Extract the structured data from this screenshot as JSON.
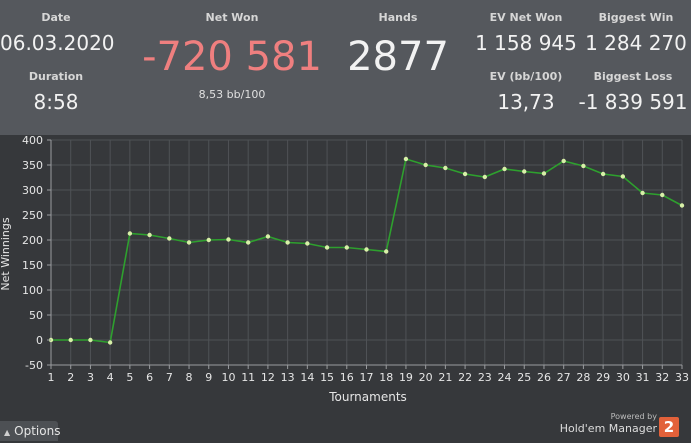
{
  "stats": {
    "date_label": "Date",
    "date_value": "06.03.2020",
    "duration_label": "Duration",
    "duration_value": "8:58",
    "net_won_label": "Net Won",
    "net_won_value": "-720 581",
    "bb100_value": "8,53 bb/100",
    "hands_label": "Hands",
    "hands_value": "2877",
    "ev_net_won_label": "EV Net Won",
    "ev_net_won_value": "1 158 945",
    "ev_bb100_label": "EV (bb/100)",
    "ev_bb100_value": "13,73",
    "biggest_win_label": "Biggest Win",
    "biggest_win_value": "1 284 270",
    "biggest_loss_label": "Biggest Loss",
    "biggest_loss_value": "-1 839 591"
  },
  "colors": {
    "header_bg": "#55585d",
    "chart_bg": "#36383b",
    "line": "#2ea02e",
    "point": "#d8f0a8",
    "net_won": "#ef7f7f"
  },
  "chart_data": {
    "type": "line",
    "xlabel": "Tournaments",
    "ylabel": "Net Winnings",
    "x": [
      1,
      2,
      3,
      4,
      5,
      6,
      7,
      8,
      9,
      10,
      11,
      12,
      13,
      14,
      15,
      16,
      17,
      18,
      19,
      20,
      21,
      22,
      23,
      24,
      25,
      26,
      27,
      28,
      29,
      30,
      31,
      32,
      33
    ],
    "y": [
      0,
      0,
      0,
      -5,
      213,
      210,
      203,
      195,
      200,
      201,
      195,
      207,
      195,
      193,
      185,
      185,
      181,
      177,
      362,
      350,
      344,
      332,
      326,
      342,
      337,
      333,
      358,
      348,
      332,
      327,
      294,
      290,
      269
    ],
    "ylim": [
      -50,
      400
    ],
    "yticks": [
      -50,
      0,
      50,
      100,
      150,
      200,
      250,
      300,
      350,
      400
    ],
    "grid": true,
    "legend": "none"
  },
  "footer": {
    "options_label": "Options",
    "powered_by": "Powered by",
    "brand": "Hold'em Manager",
    "brand_logo": "2"
  }
}
